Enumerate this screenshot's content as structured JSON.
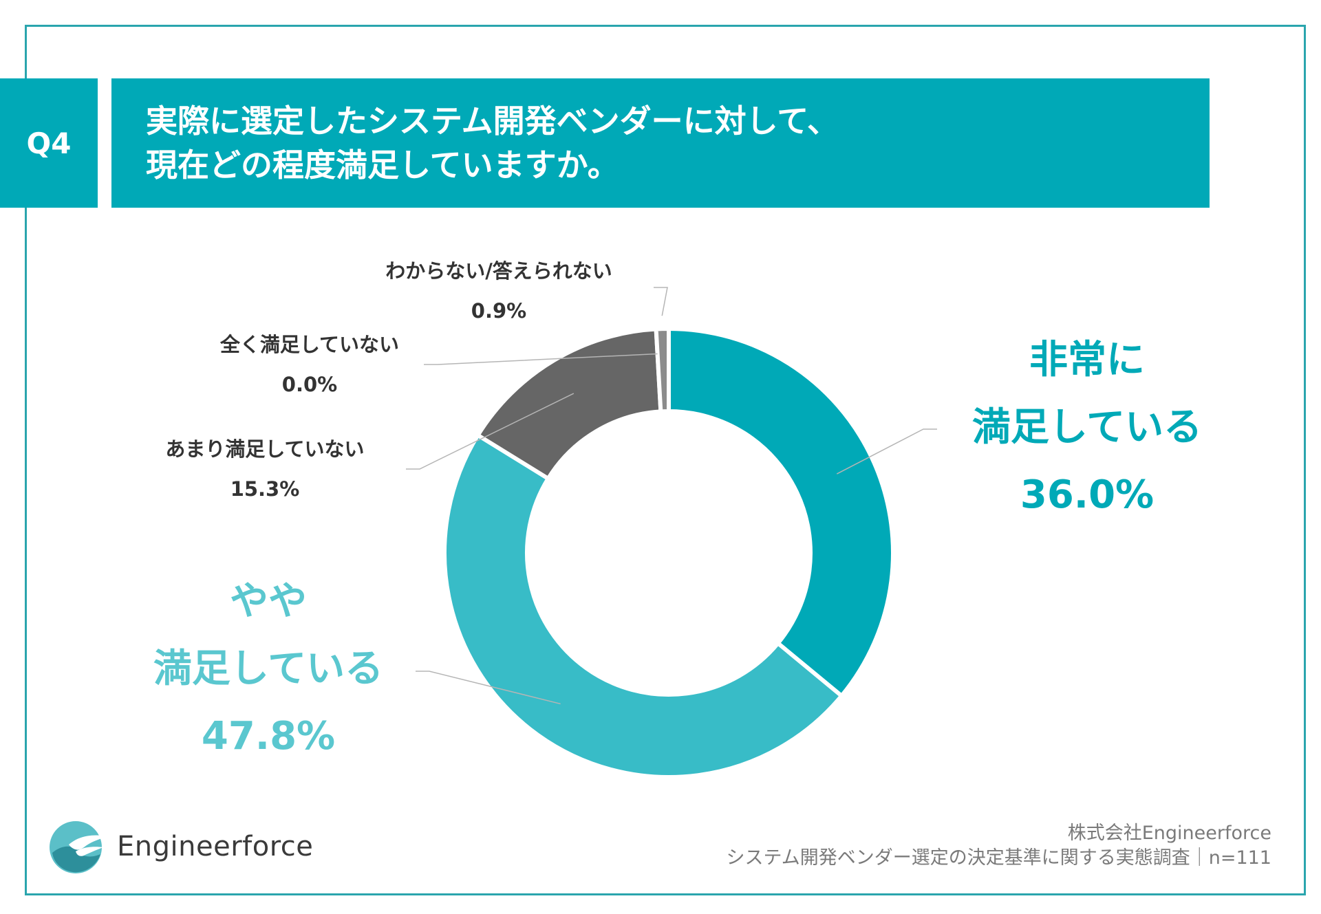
{
  "question": {
    "badge": "Q4",
    "title_line1": "実際に選定したシステム開発ベンダーに対して、",
    "title_line2": "現在どの程度満足していますか。"
  },
  "chart_data": {
    "type": "pie",
    "categories": [
      "非常に満足している",
      "やや満足している",
      "あまり満足していない",
      "全く満足していない",
      "わからない/答えられない"
    ],
    "values": [
      36.0,
      47.8,
      15.3,
      0.0,
      0.9
    ],
    "unit": "%",
    "colors": [
      "#00a9b7",
      "#38bcc7",
      "#666666",
      "#555555",
      "#8c8c8c"
    ],
    "labels": [
      {
        "line1": "非常に",
        "line2": "満足している",
        "pct": "36.0%"
      },
      {
        "line1": "やや",
        "line2": "満足している",
        "pct": "47.8%"
      },
      {
        "line1": "あまり満足していない",
        "pct": "15.3%"
      },
      {
        "line1": "全く満足していない",
        "pct": "0.0%"
      },
      {
        "line1": "わからない/答えられない",
        "pct": "0.9%"
      }
    ]
  },
  "logo": {
    "name": "Engineerforce",
    "colors": [
      "#5bbfc8",
      "#2d8f9b"
    ]
  },
  "footer": {
    "line1": "株式会社Engineerforce",
    "line2": "システム開発ベンダー選定の決定基準に関する実態調査｜n=111"
  }
}
